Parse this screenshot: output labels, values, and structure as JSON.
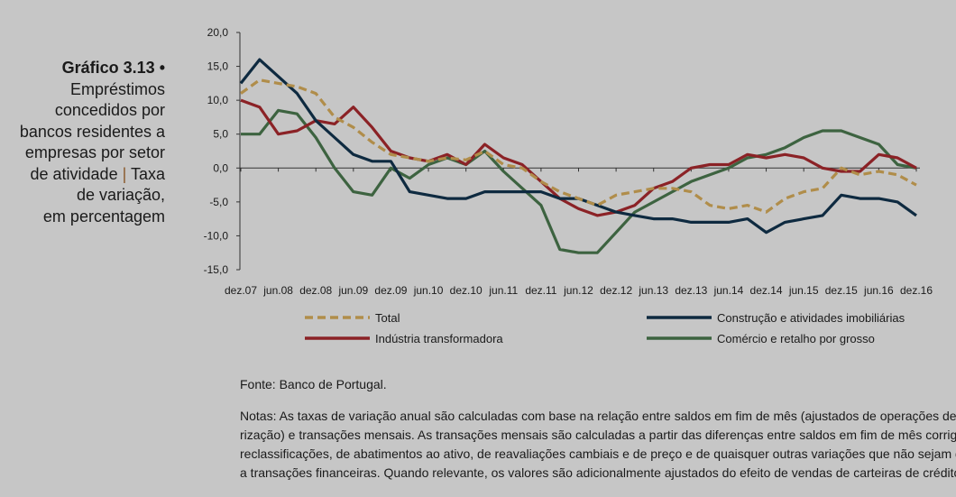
{
  "caption": {
    "label": "Gráfico 3.13",
    "bullet": "•",
    "title_lines": [
      "Empréstimos",
      "concedidos por",
      "bancos residentes a",
      "empresas por setor",
      "de atividade"
    ],
    "separator": "|",
    "subtitle_lines": [
      "Taxa",
      "de variação,",
      "em percentagem"
    ]
  },
  "chart_data": {
    "type": "line",
    "title": "",
    "xlabel": "",
    "ylabel": "",
    "ylim": [
      -15,
      20
    ],
    "yticks": [
      "20,0",
      "15,0",
      "10,0",
      "5,0",
      "0,0",
      "-5,0",
      "-10,0",
      "-15,0"
    ],
    "ytick_values": [
      20,
      15,
      10,
      5,
      0,
      -5,
      -10,
      -15
    ],
    "x_tick_labels": [
      "dez.07",
      "jun.08",
      "dez.08",
      "jun.09",
      "dez.09",
      "jun.10",
      "dez.10",
      "jun.11",
      "dez.11",
      "jun.12",
      "dez.12",
      "jun.13",
      "dez.13",
      "jun.14",
      "dez.14",
      "jun.15",
      "dez.15",
      "jun.16",
      "dez.16"
    ],
    "x": [
      "dez.07",
      "mar.08",
      "jun.08",
      "set.08",
      "dez.08",
      "mar.09",
      "jun.09",
      "set.09",
      "dez.09",
      "mar.10",
      "jun.10",
      "set.10",
      "dez.10",
      "mar.11",
      "jun.11",
      "set.11",
      "dez.11",
      "mar.12",
      "jun.12",
      "set.12",
      "dez.12",
      "mar.13",
      "jun.13",
      "set.13",
      "dez.13",
      "mar.14",
      "jun.14",
      "set.14",
      "dez.14",
      "mar.15",
      "jun.15",
      "set.15",
      "dez.15",
      "mar.16",
      "jun.16",
      "set.16",
      "dez.16"
    ],
    "grid": false,
    "legend_position": "bottom",
    "series": [
      {
        "name": "Total",
        "color": "#b08d4a",
        "dashed": true,
        "values": [
          11,
          13,
          12.5,
          12,
          11,
          7.5,
          6,
          3.8,
          2,
          1.5,
          1,
          1.5,
          1.2,
          2.5,
          0.5,
          0,
          -2,
          -3.5,
          -4.5,
          -5.5,
          -4,
          -3.5,
          -3,
          -3,
          -3.5,
          -5.5,
          -6,
          -5.5,
          -6.5,
          -4.5,
          -3.5,
          -3,
          0,
          -1,
          -0.5,
          -1,
          -2.5
        ]
      },
      {
        "name": "Construção e atividades imobiliárias",
        "color": "#0e2a40",
        "dashed": false,
        "values": [
          12.5,
          16,
          13.5,
          11,
          7,
          4.5,
          2,
          1,
          1,
          -3.5,
          -4,
          -4.5,
          -4.5,
          -3.5,
          -3.5,
          -3.5,
          -3.5,
          -4.5,
          -4.5,
          -5.5,
          -6.5,
          -7,
          -7.5,
          -7.5,
          -8,
          -8,
          -8,
          -7.5,
          -9.5,
          -8,
          -7.5,
          -7,
          -4,
          -4.5,
          -4.5,
          -5,
          -7
        ]
      },
      {
        "name": "Indústria transformadora",
        "color": "#8b2226",
        "dashed": false,
        "values": [
          10,
          9,
          5,
          5.5,
          7,
          6.5,
          9,
          6,
          2.5,
          1.5,
          1,
          2,
          0.5,
          3.5,
          1.5,
          0.5,
          -2,
          -4.5,
          -6,
          -7,
          -6.5,
          -5.5,
          -3,
          -2,
          0,
          0.5,
          0.5,
          2,
          1.5,
          2,
          1.5,
          0,
          -0.5,
          -0.5,
          2,
          1.5,
          0
        ]
      },
      {
        "name": "Comércio e retalho por grosso",
        "color": "#3d6340",
        "dashed": false,
        "values": [
          5,
          5,
          8.5,
          8,
          4.5,
          0,
          -3.5,
          -4,
          0,
          -1.5,
          0.5,
          1.5,
          0.5,
          2.5,
          -0.5,
          -3,
          -5.5,
          -12,
          -12.5,
          -12.5,
          -9.5,
          -6.5,
          -5,
          -3.5,
          -2,
          -1,
          0,
          1.5,
          2,
          3,
          4.5,
          5.5,
          5.5,
          4.5,
          3.5,
          0.5,
          0
        ]
      }
    ]
  },
  "source": "Fonte: Banco de Portugal.",
  "notes_lines": [
    "Notas: As taxas de variação anual são calculadas com base na relação entre saldos em fim de mês (ajustados de operações de titula-",
    "rização) e transações mensais. As transações mensais são calculadas a partir das diferenças entre saldos em fim de mês corrigidos de",
    "reclassificações, de abatimentos ao ativo, de reavaliações cambiais e de preço e de quaisquer outras variações que não sejam devidas",
    "a transações financeiras. Quando relevante, os valores são adicionalmente ajustados do efeito de vendas de carteiras de crédito."
  ]
}
